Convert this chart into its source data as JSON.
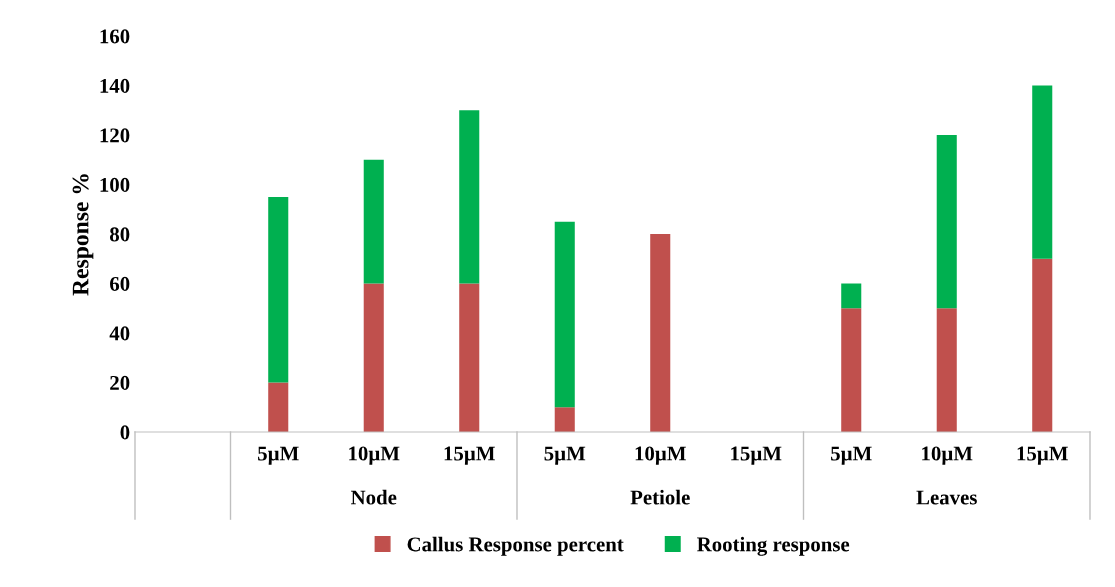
{
  "chart_data": {
    "type": "bar",
    "stacked": true,
    "ylabel": "Response %",
    "categories": [
      null,
      "5µM",
      "10µM",
      "15µM",
      "5µM",
      "10µM",
      "15µM",
      "5µM",
      "10µM",
      "15µM"
    ],
    "series": [
      {
        "name": "Callus Response percent",
        "color": "#c0504d",
        "values": [
          null,
          20,
          60,
          60,
          10,
          80,
          null,
          50,
          50,
          70
        ]
      },
      {
        "name": "Rooting response",
        "color": "#00b050",
        "values": [
          null,
          75,
          50,
          70,
          75,
          null,
          null,
          10,
          70,
          70
        ]
      }
    ],
    "annotations": [
      "Node",
      "Petiole",
      "Leaves"
    ],
    "ylim": [
      0,
      160
    ],
    "yticks": [
      0,
      20,
      40,
      60,
      80,
      100,
      120,
      140,
      160
    ],
    "grid": false,
    "legend": "bottom"
  }
}
